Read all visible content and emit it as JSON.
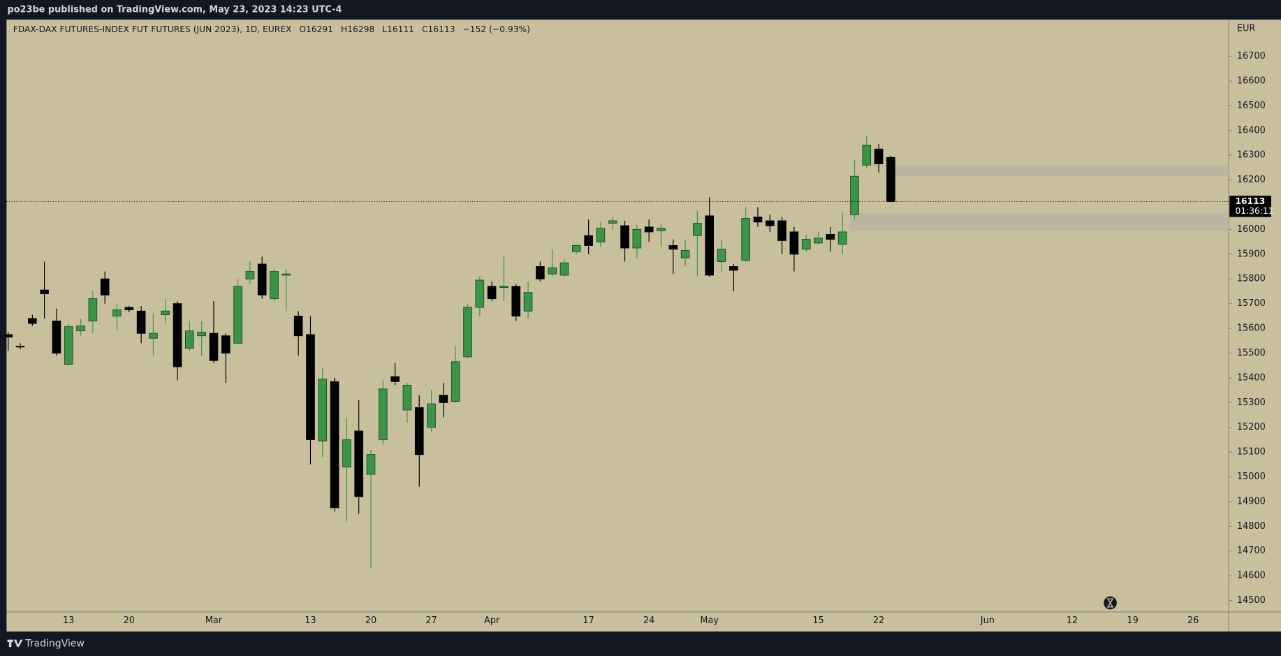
{
  "header": "po23be published on TradingView.com, May 23, 2023 14:23 UTC-4",
  "footer": "TradingView",
  "chart_data": {
    "type": "candlestick",
    "title": "FDAX-DAX FUTURES-INDEX FUT FUTURES (JUN 2023), 1D, EUREX",
    "ohlc_labels": [
      "O",
      "H",
      "L",
      "C"
    ],
    "change": "−152 (−0.93%)",
    "currency": "EUR",
    "countdown": "01:36:11",
    "up_color": "#3a9646",
    "down_color": "#000000",
    "zone_color": "#b9b4a0",
    "zones": [
      {
        "low": 16215,
        "high": 16260
      },
      {
        "low": 15993,
        "high": 16065
      }
    ],
    "ylim": [
      14454,
      16835
    ],
    "yticks": [
      14500,
      14600,
      14700,
      14800,
      14900,
      15000,
      15100,
      15200,
      15300,
      15400,
      15500,
      15600,
      15700,
      15800,
      15900,
      16000,
      16100,
      16200,
      16300,
      16400,
      16500,
      16600,
      16700
    ],
    "categories": [
      null,
      null,
      null,
      null,
      null,
      "13",
      null,
      null,
      null,
      null,
      "20",
      null,
      null,
      null,
      null,
      null,
      null,
      "Mar",
      null,
      null,
      null,
      null,
      null,
      null,
      null,
      "13",
      null,
      null,
      null,
      null,
      "20",
      null,
      null,
      null,
      null,
      "27",
      null,
      null,
      null,
      null,
      "Apr",
      null,
      null,
      null,
      null,
      null,
      null,
      null,
      "17",
      null,
      null,
      null,
      null,
      "24",
      null,
      null,
      null,
      null,
      "May",
      null,
      null,
      null,
      null,
      null,
      null,
      null,
      null,
      "15",
      null,
      null,
      null,
      null,
      "22",
      null,
      null,
      null,
      null,
      null,
      null,
      null,
      null,
      "Jun",
      null,
      null,
      null,
      null,
      null,
      null,
      "12",
      null,
      null,
      null,
      null,
      "19",
      null,
      null,
      null,
      null,
      "26",
      null,
      null
    ],
    "open": [
      15575,
      15528,
      15640,
      15755,
      15630,
      15455,
      15590,
      15630,
      15800,
      15650,
      15685,
      15670,
      15560,
      15655,
      15700,
      15520,
      15570,
      15580,
      15570,
      15540,
      15800,
      15860,
      15720,
      15815,
      15650,
      15575,
      15145,
      15385,
      15040,
      15185,
      15010,
      15150,
      15405,
      15270,
      15280,
      15200,
      15330,
      15305,
      15485,
      15685,
      15770,
      15765,
      15770,
      15670,
      15850,
      15820,
      15815,
      15910,
      15975,
      15950,
      16025,
      16015,
      15925,
      16010,
      15995,
      15935,
      15885,
      15975,
      16055,
      15870,
      15850,
      15875,
      16050,
      16035,
      16035,
      15990,
      15920,
      15945,
      15980,
      15940,
      16060,
      16260,
      16325,
      16291,
      null,
      null,
      null,
      null,
      null,
      null,
      null,
      null,
      null,
      null,
      null,
      null,
      null,
      null,
      null,
      null,
      null,
      null,
      null,
      null,
      null,
      null,
      null,
      null,
      null,
      null,
      null
    ],
    "high": [
      15585,
      15540,
      15655,
      15870,
      15680,
      15620,
      15640,
      15750,
      15830,
      15700,
      15690,
      15690,
      15660,
      15720,
      15710,
      15630,
      15630,
      15710,
      15580,
      15800,
      15870,
      15890,
      15840,
      15840,
      15670,
      15650,
      15440,
      15400,
      15240,
      15310,
      15110,
      15390,
      15460,
      15380,
      15330,
      15350,
      15380,
      15530,
      15700,
      15810,
      15790,
      15890,
      15780,
      15790,
      15870,
      15920,
      15880,
      15940,
      16040,
      16030,
      16050,
      16035,
      16020,
      16040,
      16020,
      15960,
      15960,
      16075,
      16130,
      15960,
      15860,
      16090,
      16090,
      16060,
      16050,
      16010,
      15980,
      15990,
      16010,
      16070,
      16280,
      16380,
      16345,
      16298,
      null,
      null,
      null,
      null,
      null,
      null,
      null,
      null,
      null,
      null,
      null,
      null,
      null,
      null,
      null,
      null,
      null,
      null,
      null,
      null,
      null,
      null,
      null,
      null,
      null,
      null,
      null
    ],
    "low": [
      15510,
      15515,
      15610,
      15640,
      15490,
      15450,
      15570,
      15580,
      15700,
      15590,
      15665,
      15540,
      15490,
      15620,
      15390,
      15510,
      15490,
      15460,
      15380,
      15540,
      15780,
      15720,
      15710,
      15670,
      15490,
      15050,
      15080,
      14860,
      14820,
      14850,
      14630,
      15130,
      15370,
      15220,
      14960,
      15180,
      15240,
      15300,
      15480,
      15650,
      15710,
      15710,
      15630,
      15640,
      15790,
      15810,
      15810,
      15900,
      15900,
      15930,
      16000,
      15870,
      15880,
      15950,
      15930,
      15820,
      15850,
      15810,
      15810,
      15830,
      15750,
      15870,
      16010,
      15990,
      15900,
      15830,
      15910,
      15940,
      15910,
      15900,
      16040,
      16250,
      16230,
      16111,
      null,
      null,
      null,
      null,
      null,
      null,
      null,
      null,
      null,
      null,
      null,
      null,
      null,
      null,
      null,
      null,
      null,
      null,
      null,
      null,
      null,
      null,
      null,
      null,
      null,
      null,
      null
    ],
    "close": [
      15565,
      15525,
      15620,
      15740,
      15500,
      15607,
      15610,
      15720,
      15735,
      15675,
      15675,
      15580,
      15580,
      15670,
      15445,
      15590,
      15585,
      15470,
      15500,
      15770,
      15830,
      15735,
      15830,
      15820,
      15570,
      15150,
      15395,
      14875,
      15150,
      14920,
      15090,
      15355,
      15385,
      15370,
      15090,
      15295,
      15300,
      15465,
      15685,
      15795,
      15720,
      15770,
      15650,
      15745,
      15800,
      15845,
      15865,
      15935,
      15935,
      16005,
      16035,
      15925,
      16000,
      15990,
      16005,
      15920,
      15915,
      16025,
      15815,
      15920,
      15835,
      16045,
      16030,
      16015,
      15955,
      15900,
      15960,
      15965,
      15960,
      15990,
      16215,
      16340,
      16265,
      16113,
      null,
      null,
      null,
      null,
      null,
      null,
      null,
      null,
      null,
      null,
      null,
      null,
      null,
      null,
      null,
      null,
      null,
      null,
      null,
      null,
      null,
      null,
      null,
      null,
      null,
      null,
      null
    ]
  }
}
